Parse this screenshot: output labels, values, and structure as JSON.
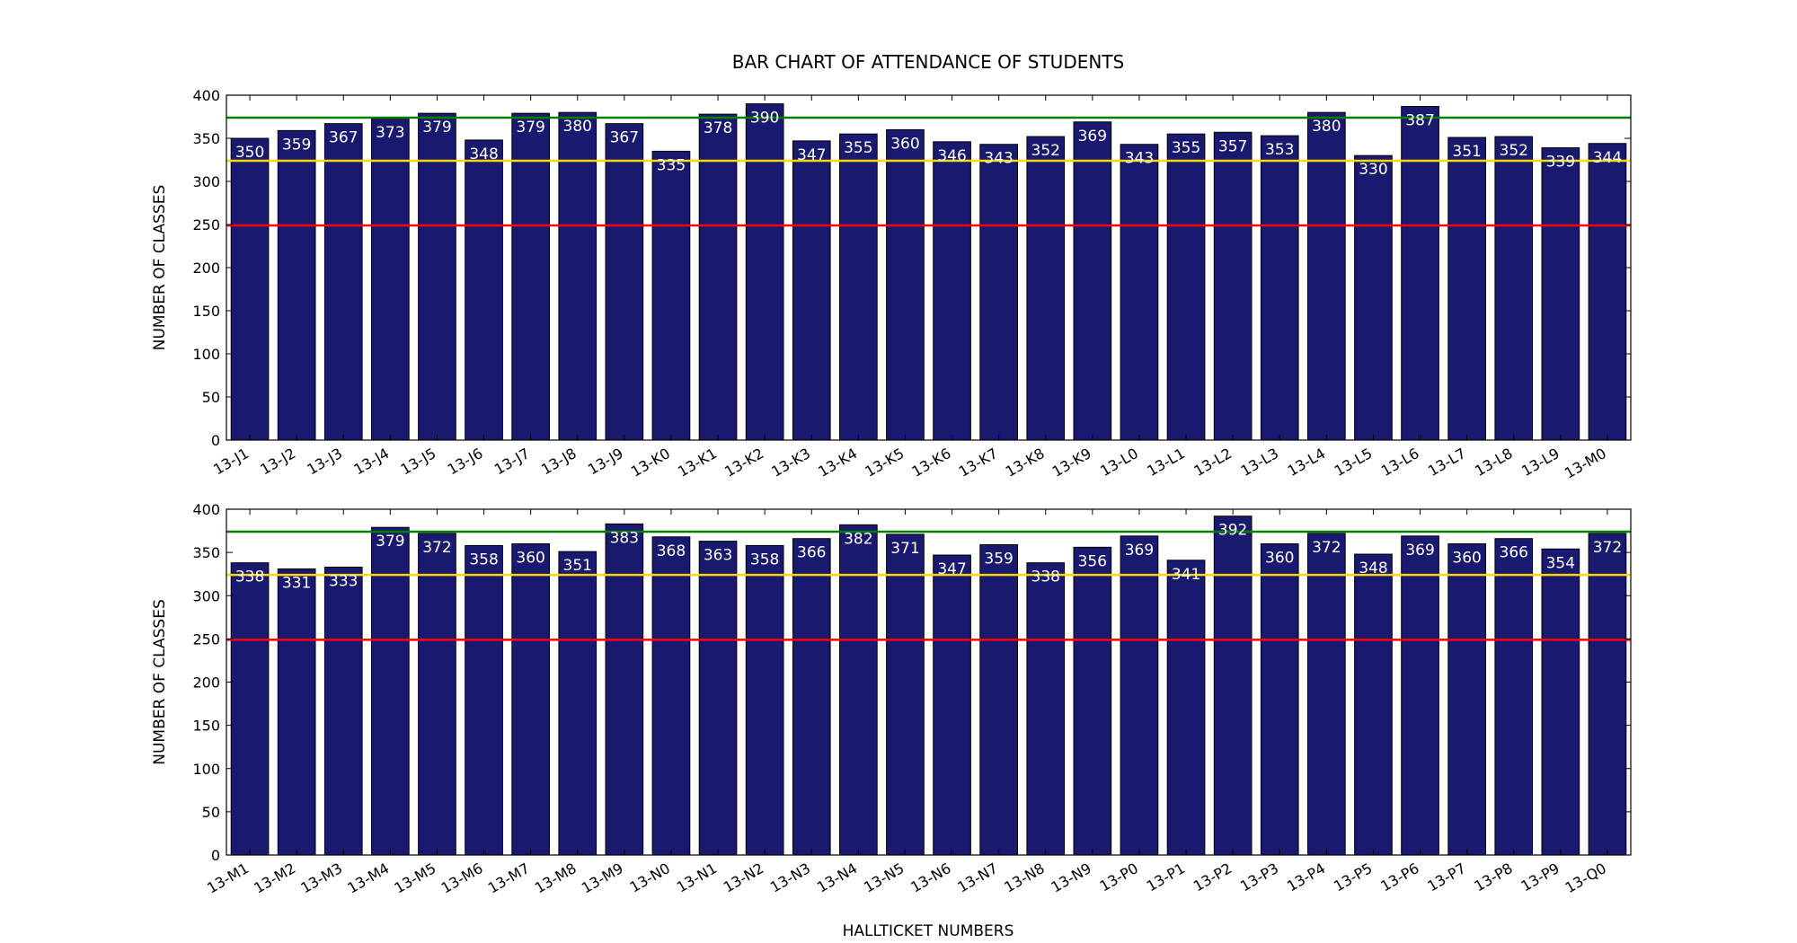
{
  "chart_data": {
    "type": "bar",
    "title": "BAR CHART OF ATTENDANCE OF STUDENTS",
    "xlabel": "HALLTICKET NUMBERS",
    "ylabel": "NUMBER OF CLASSES",
    "ylim": [
      0,
      400
    ],
    "yticks": [
      0,
      50,
      100,
      150,
      200,
      250,
      300,
      350,
      400
    ],
    "grid": false,
    "bar_color": "#191970",
    "reference_lines": [
      {
        "value": 374,
        "color": "#008000"
      },
      {
        "value": 324,
        "color": "#FFD700"
      },
      {
        "value": 249,
        "color": "#FF0000"
      }
    ],
    "panels": [
      {
        "ylabel": "NUMBER OF CLASSES",
        "categories": [
          "13-J1",
          "13-J2",
          "13-J3",
          "13-J4",
          "13-J5",
          "13-J6",
          "13-J7",
          "13-J8",
          "13-J9",
          "13-K0",
          "13-K1",
          "13-K2",
          "13-K3",
          "13-K4",
          "13-K5",
          "13-K6",
          "13-K7",
          "13-K8",
          "13-K9",
          "13-L0",
          "13-L1",
          "13-L2",
          "13-L3",
          "13-L4",
          "13-L5",
          "13-L6",
          "13-L7",
          "13-L8",
          "13-L9",
          "13-M0"
        ],
        "values": [
          350,
          359,
          367,
          373,
          379,
          348,
          379,
          380,
          367,
          335,
          378,
          390,
          347,
          355,
          360,
          346,
          343,
          352,
          369,
          343,
          355,
          357,
          353,
          380,
          330,
          387,
          351,
          352,
          339,
          344
        ]
      },
      {
        "ylabel": "NUMBER OF CLASSES",
        "categories": [
          "13-M1",
          "13-M2",
          "13-M3",
          "13-M4",
          "13-M5",
          "13-M6",
          "13-M7",
          "13-M8",
          "13-M9",
          "13-N0",
          "13-N1",
          "13-N2",
          "13-N3",
          "13-N4",
          "13-N5",
          "13-N6",
          "13-N7",
          "13-N8",
          "13-N9",
          "13-P0",
          "13-P1",
          "13-P2",
          "13-P3",
          "13-P4",
          "13-P5",
          "13-P6",
          "13-P7",
          "13-P8",
          "13-P9",
          "13-Q0"
        ],
        "values": [
          338,
          331,
          333,
          379,
          372,
          358,
          360,
          351,
          383,
          368,
          363,
          358,
          366,
          382,
          371,
          347,
          359,
          338,
          356,
          369,
          341,
          392,
          360,
          372,
          348,
          369,
          360,
          366,
          354,
          372
        ]
      }
    ]
  }
}
